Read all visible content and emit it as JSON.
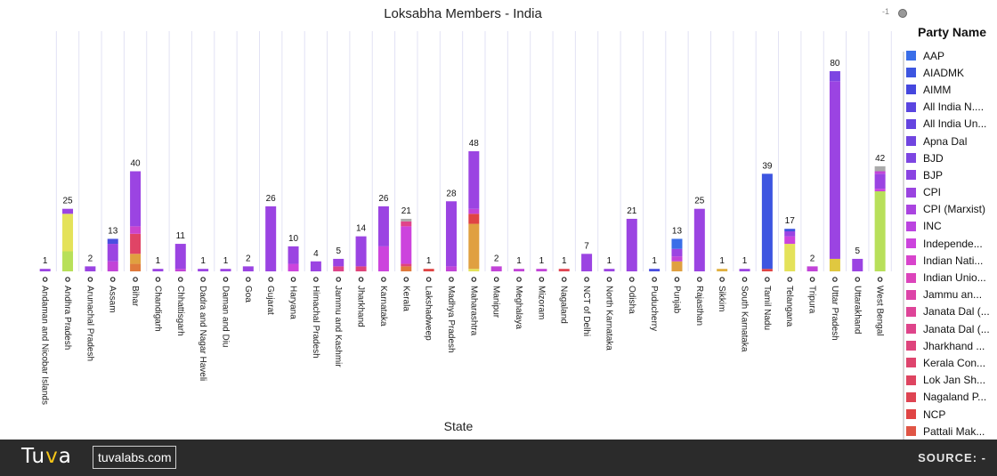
{
  "title": "Loksabha Members - India",
  "zoom_label": "-1",
  "legend": {
    "title": "Party Name",
    "items": [
      {
        "label": "AAP",
        "color": "#3a6ee8"
      },
      {
        "label": "AIADMK",
        "color": "#3d55e0"
      },
      {
        "label": "AIMM",
        "color": "#4547de"
      },
      {
        "label": "All India N....",
        "color": "#5a45e0"
      },
      {
        "label": "All India Un...",
        "color": "#6444e0"
      },
      {
        "label": "Apna Dal",
        "color": "#7045e0"
      },
      {
        "label": "BJD",
        "color": "#7d46e2"
      },
      {
        "label": "BJP",
        "color": "#8a44e2"
      },
      {
        "label": "CPI",
        "color": "#9a44e0"
      },
      {
        "label": "CPI (Marxist)",
        "color": "#aa44e0"
      },
      {
        "label": "INC",
        "color": "#bb44e0"
      },
      {
        "label": "Independe...",
        "color": "#cc44dd"
      },
      {
        "label": "Indian Nati...",
        "color": "#d844cc"
      },
      {
        "label": "Indian Unio...",
        "color": "#dc44bb"
      },
      {
        "label": "Jammu an...",
        "color": "#dd44a8"
      },
      {
        "label": "Janata Dal (...",
        "color": "#de4498"
      },
      {
        "label": "Janata Dal (...",
        "color": "#de448a"
      },
      {
        "label": "Jharkhand ...",
        "color": "#de447c"
      },
      {
        "label": "Kerala Con...",
        "color": "#de446d"
      },
      {
        "label": "Lok Jan Sh...",
        "color": "#de4460"
      },
      {
        "label": "Nagaland P...",
        "color": "#de4452"
      },
      {
        "label": "NCP",
        "color": "#e04444"
      },
      {
        "label": "Pattali Mak...",
        "color": "#e05545"
      }
    ],
    "more": "..."
  },
  "chart_data": {
    "type": "bar",
    "stacked": true,
    "title": "Loksabha Members - India",
    "xlabel": "State",
    "ylabel": "",
    "ylim": [
      0,
      80
    ],
    "categories": [
      "Andaman and Nicobar Islands",
      "Andhra Pradesh",
      "Arunachal Pradesh",
      "Assam",
      "Bihar",
      "Chandigarh",
      "Chhattisgarh",
      "Dadra and Nagar Haveli",
      "Daman and Diu",
      "Goa",
      "Gujarat",
      "Haryana",
      "Himachal Pradesh",
      "Jammu and Kashmir",
      "Jharkhand",
      "Karnataka",
      "Kerala",
      "Lakshadweep",
      "Madhya Pradesh",
      "Maharashtra",
      "Manipur",
      "Meghalaya",
      "Mizoram",
      "Nagaland",
      "NCT of Delhi",
      "North Karnataka",
      "Odisha",
      "Puducherry",
      "Punjab",
      "Rajasthan",
      "Sikkim",
      "South Karnataka",
      "Tamil Nadu",
      "Telangana",
      "Tripura",
      "Uttar Pradesh",
      "Uttarakhand",
      "West Bengal"
    ],
    "totals": [
      1,
      25,
      2,
      13,
      40,
      1,
      11,
      1,
      1,
      2,
      26,
      10,
      4,
      5,
      14,
      26,
      21,
      1,
      28,
      48,
      2,
      1,
      1,
      1,
      7,
      1,
      21,
      1,
      13,
      25,
      1,
      1,
      39,
      17,
      2,
      80,
      5,
      42
    ],
    "stacks": [
      [
        {
          "value": 1,
          "color": "#9b44e2"
        }
      ],
      [
        {
          "value": 8,
          "color": "#b8e05a"
        },
        {
          "value": 15,
          "color": "#e4e25a"
        },
        {
          "value": 2,
          "color": "#9b44e2"
        }
      ],
      [
        {
          "value": 2,
          "color": "#9b44e2"
        }
      ],
      [
        {
          "value": 4,
          "color": "#c244d8"
        },
        {
          "value": 7,
          "color": "#9b44e2"
        },
        {
          "value": 2,
          "color": "#4a4ee0"
        }
      ],
      [
        {
          "value": 3,
          "color": "#e07a3c"
        },
        {
          "value": 4,
          "color": "#e0a040"
        },
        {
          "value": 8,
          "color": "#e04466"
        },
        {
          "value": 3,
          "color": "#cc44cc"
        },
        {
          "value": 22,
          "color": "#9b44e2"
        }
      ],
      [
        {
          "value": 1,
          "color": "#9b44e2"
        }
      ],
      [
        {
          "value": 1,
          "color": "#c244d8"
        },
        {
          "value": 10,
          "color": "#9b44e2"
        }
      ],
      [
        {
          "value": 1,
          "color": "#9b44e2"
        }
      ],
      [
        {
          "value": 1,
          "color": "#9b44e2"
        }
      ],
      [
        {
          "value": 2,
          "color": "#9b44e2"
        }
      ],
      [
        {
          "value": 26,
          "color": "#9b44e2"
        }
      ],
      [
        {
          "value": 3,
          "color": "#cc44dd"
        },
        {
          "value": 7,
          "color": "#9b44e2"
        }
      ],
      [
        {
          "value": 4,
          "color": "#9b44e2"
        }
      ],
      [
        {
          "value": 2,
          "color": "#de448a"
        },
        {
          "value": 3,
          "color": "#9b44e2"
        }
      ],
      [
        {
          "value": 2,
          "color": "#e0447a"
        },
        {
          "value": 12,
          "color": "#9b44e2"
        }
      ],
      [
        {
          "value": 10,
          "color": "#cc44dd"
        },
        {
          "value": 16,
          "color": "#9b44e2"
        }
      ],
      [
        {
          "value": 2,
          "color": "#e07a3c"
        },
        {
          "value": 1,
          "color": "#e0447a"
        },
        {
          "value": 15,
          "color": "#cc44dd"
        },
        {
          "value": 2,
          "color": "#e0448a"
        },
        {
          "value": 1,
          "color": "#aaaaaa"
        }
      ],
      [
        {
          "value": 1,
          "color": "#e04444"
        }
      ],
      [
        {
          "value": 2,
          "color": "#c244d8"
        },
        {
          "value": 26,
          "color": "#9b44e2"
        }
      ],
      [
        {
          "value": 1,
          "color": "#e4e25a"
        },
        {
          "value": 18,
          "color": "#e0a040"
        },
        {
          "value": 4,
          "color": "#e04444"
        },
        {
          "value": 2,
          "color": "#c244d8"
        },
        {
          "value": 23,
          "color": "#9b44e2"
        }
      ],
      [
        {
          "value": 2,
          "color": "#c244d8"
        }
      ],
      [
        {
          "value": 1,
          "color": "#c244d8"
        }
      ],
      [
        {
          "value": 1,
          "color": "#c244d8"
        }
      ],
      [
        {
          "value": 1,
          "color": "#e04452"
        }
      ],
      [
        {
          "value": 7,
          "color": "#9b44e2"
        }
      ],
      [
        {
          "value": 1,
          "color": "#9b44e2"
        }
      ],
      [
        {
          "value": 21,
          "color": "#9b44e2"
        }
      ],
      [
        {
          "value": 1,
          "color": "#4a4ee0"
        }
      ],
      [
        {
          "value": 4,
          "color": "#e0a040"
        },
        {
          "value": 2,
          "color": "#c244d8"
        },
        {
          "value": 3,
          "color": "#9b44e2"
        },
        {
          "value": 4,
          "color": "#3a6ee8"
        }
      ],
      [
        {
          "value": 25,
          "color": "#9b44e2"
        }
      ],
      [
        {
          "value": 1,
          "color": "#e0b040"
        }
      ],
      [
        {
          "value": 1,
          "color": "#9b44e2"
        }
      ],
      [
        {
          "value": 1,
          "color": "#e04444"
        },
        {
          "value": 38,
          "color": "#3d55e0"
        }
      ],
      [
        {
          "value": 11,
          "color": "#e4e25a"
        },
        {
          "value": 3,
          "color": "#cc44dd"
        },
        {
          "value": 2,
          "color": "#9b44e2"
        },
        {
          "value": 1,
          "color": "#3d55e0"
        }
      ],
      [
        {
          "value": 2,
          "color": "#c244d8"
        }
      ],
      [
        {
          "value": 5,
          "color": "#e0c840"
        },
        {
          "value": 71,
          "color": "#9b44e2"
        },
        {
          "value": 4,
          "color": "#7d46e2"
        }
      ],
      [
        {
          "value": 5,
          "color": "#9b44e2"
        }
      ],
      [
        {
          "value": 32,
          "color": "#b8e05a"
        },
        {
          "value": 1,
          "color": "#cc44dd"
        },
        {
          "value": 6,
          "color": "#9b44e2"
        },
        {
          "value": 1,
          "color": "#c244d8"
        },
        {
          "value": 2,
          "color": "#aaaaaa"
        }
      ]
    ]
  },
  "footer": {
    "logo_pre": "Tu",
    "logo_accent": "v",
    "logo_post": "a",
    "site": "tuvalabs.com",
    "source": "SOURCE: -"
  }
}
